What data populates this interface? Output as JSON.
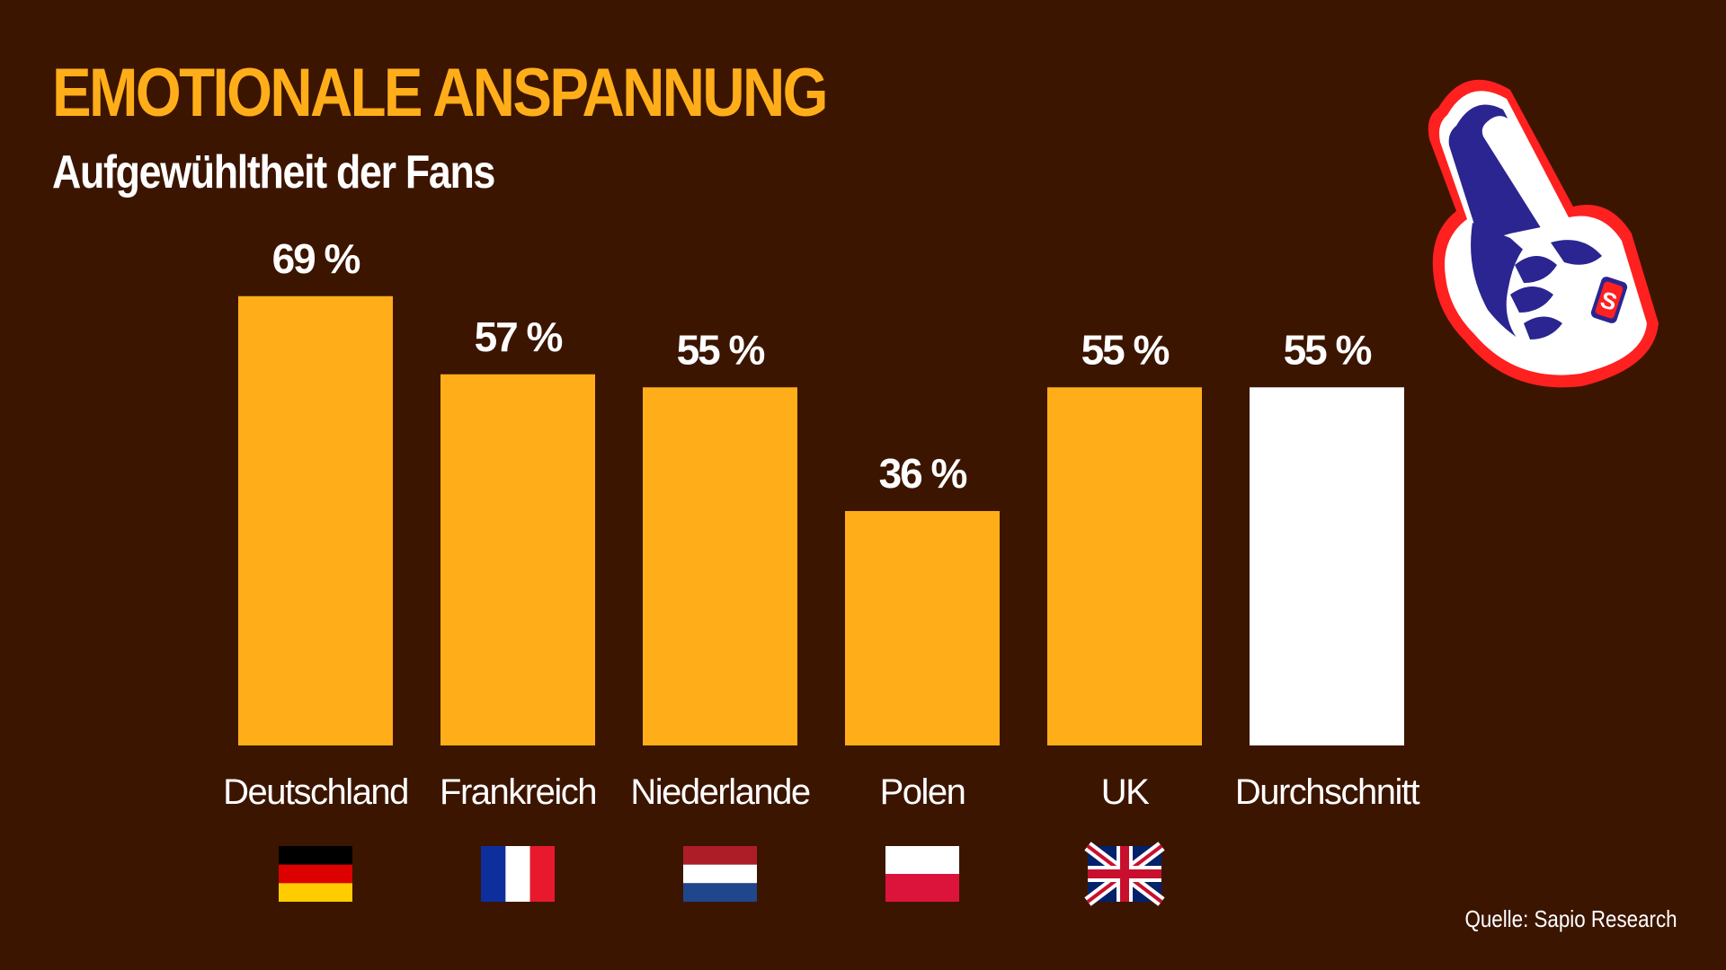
{
  "header": {
    "title": "EMOTIONALE ANSPANNUNG",
    "subtitle": "Aufgewühltheit der Fans"
  },
  "footer": {
    "source": "Quelle: Sapio Research"
  },
  "colors": {
    "background": "#3c1500",
    "bar": "#ffae1a",
    "bar_highlight": "#ffffff",
    "text": "#ffffff",
    "title": "#ffae1a"
  },
  "chart_data": {
    "type": "bar",
    "categories": [
      "Deutschland",
      "Frankreich",
      "Niederlande",
      "Polen",
      "UK",
      "Durchschnitt"
    ],
    "values": [
      69,
      57,
      55,
      36,
      55,
      55
    ],
    "value_labels": [
      "69 %",
      "57 %",
      "55 %",
      "36 %",
      "55 %",
      "55 %"
    ],
    "flags": [
      "germany-flag",
      "france-flag",
      "netherlands-flag",
      "poland-flag",
      "uk-flag",
      null
    ],
    "highlight_category": "Durchschnitt",
    "title": "EMOTIONALE ANSPANNUNG",
    "subtitle": "Aufgewühltheit der Fans",
    "ylim": [
      0,
      100
    ],
    "grid": false
  }
}
